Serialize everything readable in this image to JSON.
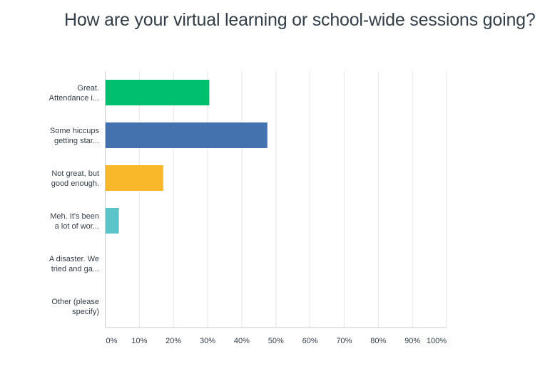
{
  "chart_data": {
    "type": "bar",
    "orientation": "horizontal",
    "title": "How are your virtual learning or school-wide sessions going?",
    "categories": [
      [
        "Great.",
        "Attendance i..."
      ],
      [
        "Some hiccups",
        "getting star..."
      ],
      [
        "Not great, but",
        "good enough."
      ],
      [
        "Meh. It's been",
        "a lot of wor..."
      ],
      [
        "A disaster. We",
        "tried and ga..."
      ],
      [
        "Other (please",
        "specify)"
      ]
    ],
    "values": [
      30.5,
      47.5,
      17,
      4,
      0,
      0
    ],
    "colors": [
      "#00bf6f",
      "#4472ae",
      "#f9b82a",
      "#5bc4c8",
      "#00bf6f",
      "#00bf6f"
    ],
    "xlim": [
      0,
      100
    ],
    "xticks": [
      "0%",
      "10%",
      "20%",
      "30%",
      "40%",
      "50%",
      "60%",
      "70%",
      "80%",
      "90%",
      "100%"
    ],
    "xlabel": "",
    "ylabel": "",
    "grid": true,
    "legend": "none"
  }
}
